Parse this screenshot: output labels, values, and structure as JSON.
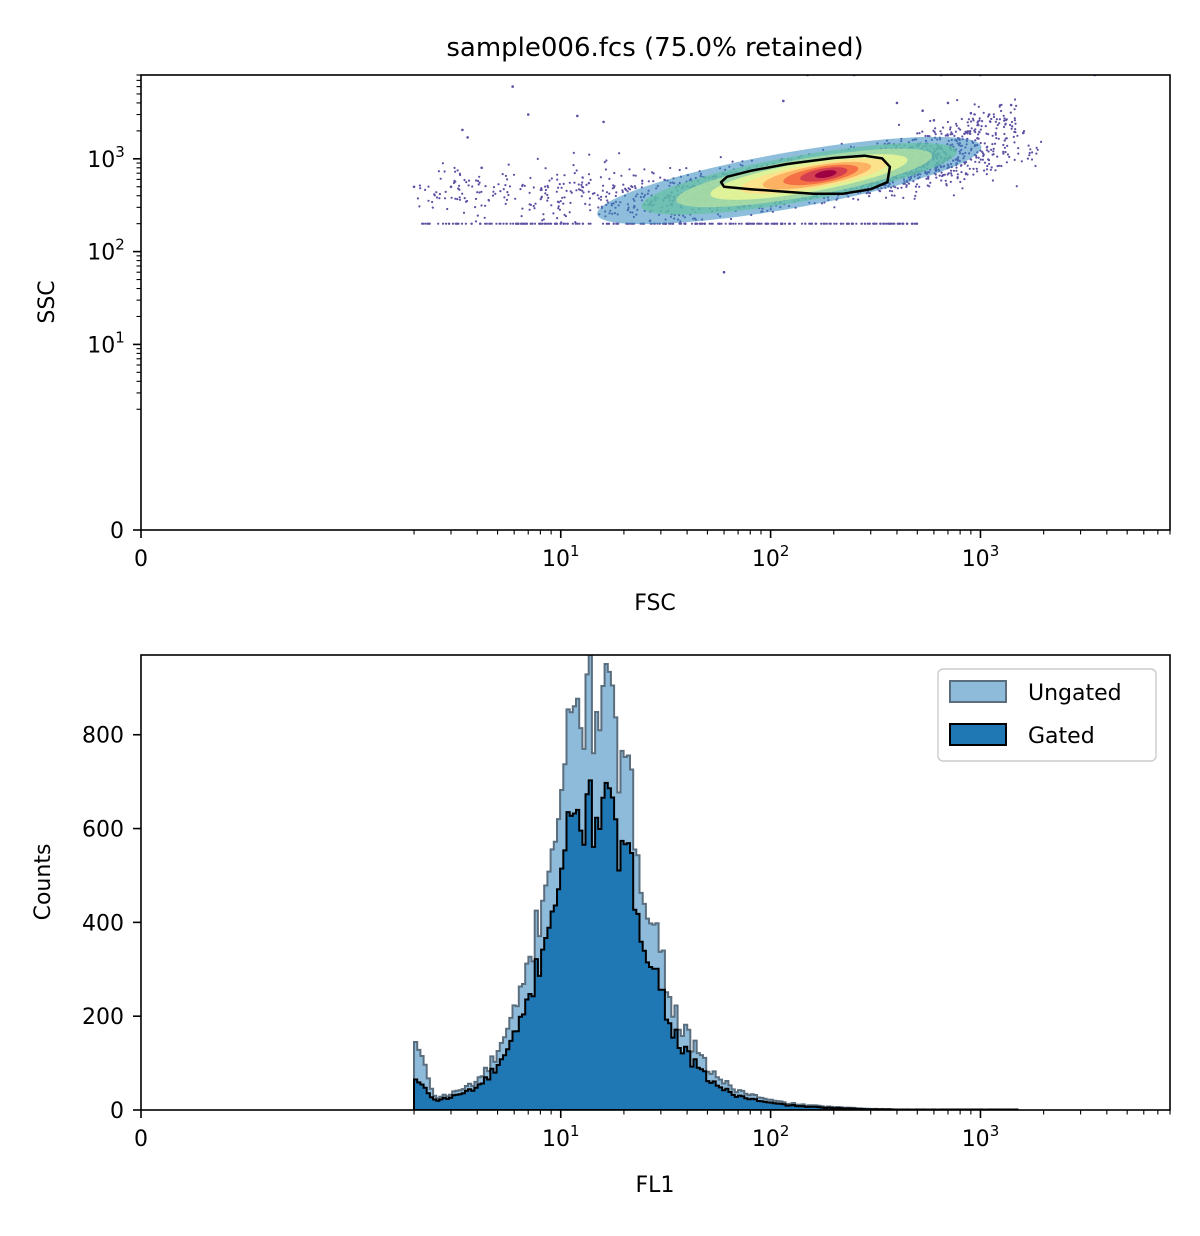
{
  "colors": {
    "dot": "#5e4fa2",
    "gate": "#000000",
    "ungated_fill": "#8fbbdb",
    "ungated_edge": "#5a6e7e",
    "gated_fill": "#1f77b4",
    "gated_edge": "#000000",
    "density_scale": [
      "#5e4fa2",
      "#3288bd",
      "#66c2a5",
      "#abdda4",
      "#e6f598",
      "#fee08b",
      "#fdae61",
      "#f46d43",
      "#d53e4f",
      "#9e0142"
    ]
  },
  "chart_data": [
    {
      "type": "scatter",
      "title": "sample006.fcs (75.0% retained)",
      "xlabel": "FSC",
      "ylabel": "SSC",
      "xscale": "symlog",
      "yscale": "symlog",
      "xlim": [
        0,
        8000
      ],
      "ylim": [
        0,
        8000
      ],
      "xticks": [
        {
          "value": 0,
          "base": "0",
          "exp": ""
        },
        {
          "value": 10,
          "base": "10",
          "exp": "1"
        },
        {
          "value": 100,
          "base": "10",
          "exp": "2"
        },
        {
          "value": 1000,
          "base": "10",
          "exp": "3"
        }
      ],
      "yticks": [
        {
          "value": 0,
          "base": "0",
          "exp": ""
        },
        {
          "value": 10,
          "base": "10",
          "exp": "1"
        },
        {
          "value": 100,
          "base": "10",
          "exp": "2"
        },
        {
          "value": 1000,
          "base": "10",
          "exp": "3"
        }
      ],
      "density_peak": {
        "fsc": 200,
        "ssc": 640
      },
      "gate_polygon": [
        [
          58,
          560
        ],
        [
          60,
          500
        ],
        [
          80,
          470
        ],
        [
          120,
          440
        ],
        [
          160,
          420
        ],
        [
          220,
          420
        ],
        [
          300,
          470
        ],
        [
          360,
          560
        ],
        [
          370,
          820
        ],
        [
          340,
          1010
        ],
        [
          280,
          1080
        ],
        [
          200,
          1020
        ],
        [
          120,
          880
        ],
        [
          80,
          740
        ],
        [
          62,
          640
        ]
      ],
      "sparse_points": [
        [
          5.9,
          6000
        ],
        [
          3.4,
          2050
        ],
        [
          3.6,
          1700
        ],
        [
          7.0,
          3000
        ],
        [
          12,
          2900
        ],
        [
          16,
          2500
        ],
        [
          60,
          60
        ],
        [
          115,
          4200
        ],
        [
          400,
          4000
        ],
        [
          530,
          3300
        ],
        [
          600,
          2600
        ],
        [
          700,
          4000
        ],
        [
          900,
          3100
        ],
        [
          1100,
          3000
        ],
        [
          1400,
          3800
        ],
        [
          1600,
          1900
        ],
        [
          3500,
          8000
        ],
        [
          1000,
          8000
        ],
        [
          650,
          8000
        ],
        [
          250,
          8000
        ],
        [
          150,
          8000
        ],
        [
          4.2,
          800
        ],
        [
          3.0,
          500
        ],
        [
          2.0,
          500
        ]
      ]
    },
    {
      "type": "bar",
      "xlabel": "FL1",
      "ylabel": "Counts",
      "xscale": "symlog",
      "xlim": [
        0,
        8000
      ],
      "ylim": [
        0,
        970
      ],
      "xticks": [
        {
          "value": 0,
          "base": "0",
          "exp": ""
        },
        {
          "value": 10,
          "base": "10",
          "exp": "1"
        },
        {
          "value": 100,
          "base": "10",
          "exp": "2"
        },
        {
          "value": 1000,
          "base": "10",
          "exp": "3"
        }
      ],
      "yticks": [
        0,
        200,
        400,
        600,
        800
      ],
      "legend_position": "top-right",
      "series": [
        {
          "name": "Ungated",
          "bin_centers": [
            2.04,
            2.53,
            3.05,
            3.6,
            4.2,
            4.85,
            5.55,
            6.35,
            7.25,
            8.3,
            9.5,
            10.8,
            12.3,
            14.0,
            15.9,
            18.0,
            20.5,
            23.5,
            27.0,
            31.0,
            35.5,
            41.0,
            48.0,
            56.0,
            66.0,
            78.0,
            95.0,
            118.0,
            150.0,
            200.0,
            280.0,
            400.0,
            650.0,
            1200.0
          ],
          "values": [
            145,
            25,
            35,
            50,
            70,
            110,
            160,
            230,
            330,
            470,
            620,
            760,
            880,
            850,
            925,
            780,
            700,
            560,
            420,
            310,
            200,
            150,
            100,
            70,
            45,
            35,
            22,
            15,
            10,
            6,
            3,
            1,
            1,
            1
          ]
        },
        {
          "name": "Gated",
          "bin_centers": [
            2.04,
            2.53,
            3.05,
            3.6,
            4.2,
            4.85,
            5.55,
            6.35,
            7.25,
            8.3,
            9.5,
            10.8,
            12.3,
            14.0,
            15.9,
            18.0,
            20.5,
            23.5,
            27.0,
            31.0,
            35.5,
            41.0,
            48.0,
            56.0,
            66.0,
            78.0,
            95.0,
            118.0,
            150.0,
            200.0,
            280.0,
            400.0,
            650.0,
            1200.0
          ],
          "values": [
            65,
            20,
            28,
            40,
            55,
            85,
            120,
            175,
            250,
            360,
            470,
            570,
            640,
            620,
            680,
            580,
            530,
            430,
            320,
            235,
            155,
            110,
            75,
            52,
            33,
            25,
            16,
            11,
            7,
            4,
            2,
            1,
            1,
            1
          ]
        }
      ]
    }
  ]
}
